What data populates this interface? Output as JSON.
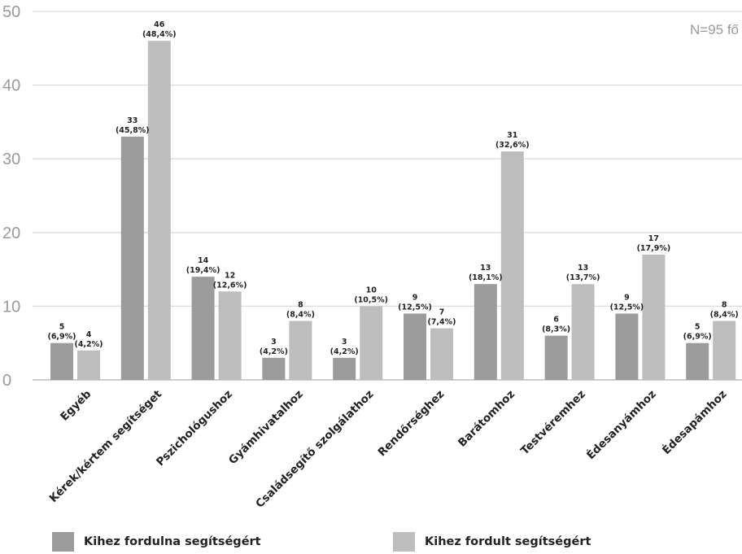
{
  "chart_data": {
    "type": "bar",
    "categories": [
      "Egyéb",
      "Kérek/kértem segítséget",
      "Pszichológushoz",
      "Gyámhivatalhoz",
      "Családsegítő szolgálathoz",
      "Rendőrséghez",
      "Barátomhoz",
      "Testvéremhez",
      "Édesanyámhoz",
      "Édesapámhoz"
    ],
    "series": [
      {
        "name": "Kihez fordulna segítségért",
        "color": "#9b9b9b",
        "values": [
          5,
          33,
          14,
          3,
          3,
          9,
          13,
          6,
          9,
          5
        ],
        "labels": [
          "(6,9%)",
          "(45,8%)",
          "(19,4%)",
          "(4,2%)",
          "(4,2%)",
          "(12,5%)",
          "(18,1%)",
          "(8,3%)",
          "(12,5%)",
          "(6,9%)"
        ]
      },
      {
        "name": "Kihez fordult segítségért",
        "color": "#bdbdbd",
        "values": [
          4,
          46,
          12,
          8,
          10,
          7,
          31,
          13,
          17,
          8
        ],
        "labels": [
          "(4,2%)",
          "(48,4%)",
          "(12,6%)",
          "(8,4%)",
          "(10,5%)",
          "(7,4%)",
          "(32,6%)",
          "(13,7%)",
          "(17,9%)",
          "(8,4%)"
        ]
      }
    ],
    "yticks": [
      0,
      10,
      20,
      30,
      40,
      50
    ],
    "ylim": [
      0,
      50
    ],
    "grid": true,
    "annotation": "N=95 fő",
    "legend_position": "bottom"
  }
}
